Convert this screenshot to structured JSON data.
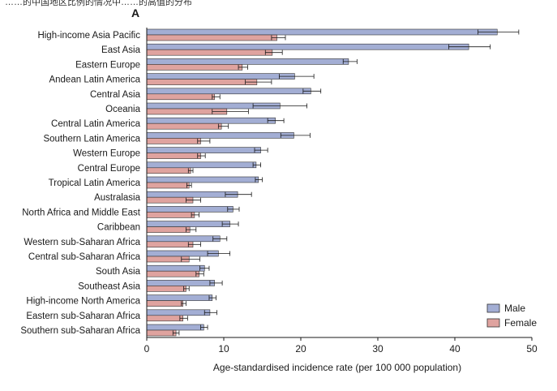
{
  "top_text": "……的中国地区比例的情况中……的高值的分布",
  "chart_data": {
    "type": "bar",
    "orientation": "horizontal",
    "panel_label": "A",
    "xlabel": "Age-standardised incidence rate (per 100 000 population)",
    "xlim": [
      0,
      50
    ],
    "xticks": [
      0,
      10,
      20,
      30,
      40,
      50
    ],
    "grid": false,
    "legend_position": "bottom-right",
    "categories": [
      "High-income Asia Pacific",
      "East Asia",
      "Eastern Europe",
      "Andean Latin America",
      "Central Asia",
      "Oceania",
      "Central Latin America",
      "Southern Latin America",
      "Western Europe",
      "Central Europe",
      "Tropical Latin America",
      "Australasia",
      "North Africa and Middle East",
      "Caribbean",
      "Western sub-Saharan Africa",
      "Central sub-Saharan Africa",
      "South Asia",
      "Southeast Asia",
      "High-income North America",
      "Eastern sub-Saharan Africa",
      "Southern sub-Saharan Africa"
    ],
    "series": [
      {
        "name": "Male",
        "color": "#a3aed4",
        "values": [
          45.5,
          41.8,
          26.2,
          19.2,
          21.3,
          17.3,
          16.7,
          19.1,
          14.8,
          14.2,
          14.5,
          11.8,
          11.2,
          10.8,
          9.5,
          9.3,
          7.5,
          8.8,
          8.5,
          8.2,
          7.4
        ],
        "ci_low": [
          43.0,
          39.2,
          25.5,
          17.2,
          20.3,
          13.8,
          15.7,
          17.4,
          14.0,
          13.8,
          14.1,
          10.2,
          10.5,
          9.8,
          8.6,
          7.9,
          6.9,
          8.2,
          8.1,
          7.5,
          7.0
        ],
        "ci_high": [
          48.3,
          44.6,
          27.3,
          21.7,
          22.6,
          20.8,
          17.8,
          21.2,
          15.7,
          14.8,
          15.0,
          13.6,
          12.0,
          11.9,
          10.4,
          10.8,
          8.1,
          9.8,
          9.0,
          9.1,
          7.9
        ]
      },
      {
        "name": "Female",
        "color": "#dfa39f",
        "values": [
          16.9,
          16.3,
          12.4,
          14.3,
          8.8,
          10.4,
          9.7,
          7.0,
          7.0,
          5.7,
          5.5,
          6.0,
          6.2,
          5.6,
          6.0,
          5.5,
          6.8,
          5.1,
          4.7,
          4.7,
          3.8
        ],
        "ci_low": [
          16.2,
          15.4,
          11.9,
          12.8,
          8.5,
          8.5,
          9.3,
          6.6,
          6.6,
          5.4,
          5.2,
          5.1,
          5.8,
          5.1,
          5.4,
          4.5,
          6.4,
          4.8,
          4.5,
          4.3,
          3.4
        ],
        "ci_high": [
          18.0,
          17.6,
          13.1,
          16.2,
          9.5,
          13.2,
          10.6,
          8.2,
          7.6,
          6.0,
          5.8,
          7.0,
          6.8,
          6.4,
          7.0,
          6.9,
          7.4,
          5.5,
          5.1,
          5.3,
          4.2
        ]
      }
    ]
  }
}
